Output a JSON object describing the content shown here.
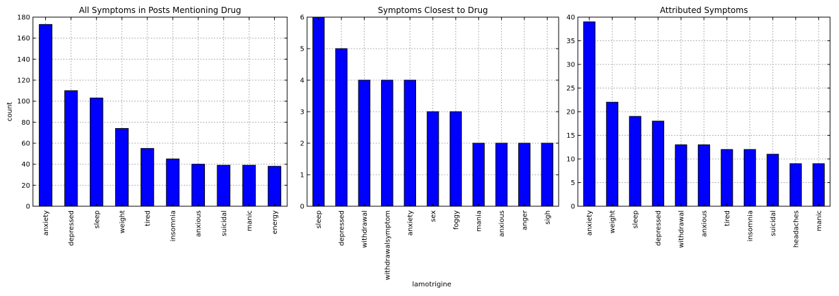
{
  "figure": {
    "xlabel": "lamotrigine",
    "bar_color": "#0000ff",
    "bar_edge_color": "#000000",
    "grid": true
  },
  "chart_data": [
    {
      "type": "bar",
      "title": "All Symptoms in Posts Mentioning Drug",
      "ylabel": "count",
      "ylim": [
        0,
        180
      ],
      "yticks": [
        0,
        20,
        40,
        60,
        80,
        100,
        120,
        140,
        160,
        180
      ],
      "categories": [
        "anxiety",
        "depressed",
        "sleep",
        "weight",
        "tired",
        "insomnia",
        "anxious",
        "suicidal",
        "manic",
        "energy"
      ],
      "values": [
        173,
        110,
        103,
        74,
        55,
        45,
        40,
        39,
        39,
        38
      ]
    },
    {
      "type": "bar",
      "title": "Symptoms Closest to Drug",
      "ylabel": "",
      "ylim": [
        0,
        6
      ],
      "yticks": [
        0,
        1,
        2,
        3,
        4,
        5,
        6
      ],
      "categories": [
        "sleep",
        "depressed",
        "withdrawal",
        "withdrawalsymptom",
        "anxiety",
        "sex",
        "foggy",
        "mania",
        "anxious",
        "anger",
        "sigh"
      ],
      "values": [
        6,
        5,
        4,
        4,
        4,
        3,
        3,
        2,
        2,
        2,
        2
      ]
    },
    {
      "type": "bar",
      "title": "Attributed Symptoms",
      "ylabel": "",
      "ylim": [
        0,
        40
      ],
      "yticks": [
        0,
        5,
        10,
        15,
        20,
        25,
        30,
        35,
        40
      ],
      "categories": [
        "anxiety",
        "weight",
        "sleep",
        "depressed",
        "withdrawal",
        "anxious",
        "tired",
        "insomnia",
        "suicidal",
        "headaches",
        "manic"
      ],
      "values": [
        39,
        22,
        19,
        18,
        13,
        13,
        12,
        12,
        11,
        9,
        9
      ]
    }
  ]
}
